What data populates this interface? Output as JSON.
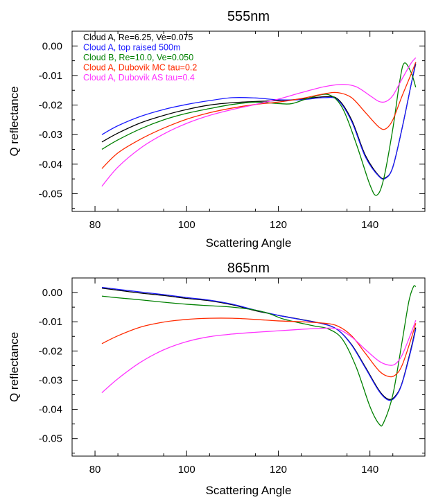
{
  "chart_data": [
    {
      "type": "line",
      "title": "555nm",
      "xlabel": "Scattering Angle",
      "ylabel": "Q reflectance",
      "xlim": [
        75,
        152
      ],
      "ylim": [
        -0.056,
        0.005
      ],
      "xticks": [
        80,
        100,
        120,
        140
      ],
      "xtick_labels": [
        "80",
        "100",
        "120",
        "140"
      ],
      "yticks": [
        0.0,
        -0.01,
        -0.02,
        -0.03,
        -0.04,
        -0.05
      ],
      "ytick_labels": [
        "0.00",
        "-0.01",
        "-0.02",
        "-0.03",
        "-0.04",
        "-0.05"
      ],
      "grid": false,
      "legend_position": "top-left",
      "series": [
        {
          "name": "Cloud A, Re=6.25, Ve=0.075",
          "color": "#000000",
          "points": [
            [
              81.5,
              -0.0325
            ],
            [
              85,
              -0.0295
            ],
            [
              90,
              -0.026
            ],
            [
              95,
              -0.0235
            ],
            [
              100,
              -0.0215
            ],
            [
              105,
              -0.02
            ],
            [
              110,
              -0.0192
            ],
            [
              115,
              -0.0188
            ],
            [
              120,
              -0.0185
            ],
            [
              125,
              -0.018
            ],
            [
              130,
              -0.0172
            ],
            [
              133,
              -0.018
            ],
            [
              136,
              -0.025
            ],
            [
              139,
              -0.037
            ],
            [
              142,
              -0.044
            ],
            [
              143.5,
              -0.0445
            ],
            [
              145,
              -0.041
            ],
            [
              147,
              -0.028
            ],
            [
              149,
              -0.013
            ],
            [
              150,
              -0.006
            ]
          ]
        },
        {
          "name": "Cloud A, top raised 500m",
          "color": "#1a1aff",
          "points": [
            [
              81.5,
              -0.03
            ],
            [
              85,
              -0.027
            ],
            [
              90,
              -0.0238
            ],
            [
              95,
              -0.0215
            ],
            [
              100,
              -0.0198
            ],
            [
              105,
              -0.0185
            ],
            [
              110,
              -0.0175
            ],
            [
              115,
              -0.0176
            ],
            [
              120,
              -0.0182
            ],
            [
              125,
              -0.0182
            ],
            [
              130,
              -0.0175
            ],
            [
              133,
              -0.0183
            ],
            [
              136,
              -0.0255
            ],
            [
              139,
              -0.0375
            ],
            [
              142,
              -0.0442
            ],
            [
              143.5,
              -0.0447
            ],
            [
              145,
              -0.041
            ],
            [
              147,
              -0.028
            ],
            [
              149,
              -0.013
            ],
            [
              150,
              -0.0055
            ]
          ]
        },
        {
          "name": "Cloud B, Re=10.0, Ve=0.050",
          "color": "#008000",
          "points": [
            [
              81.5,
              -0.035
            ],
            [
              85,
              -0.0318
            ],
            [
              90,
              -0.028
            ],
            [
              95,
              -0.025
            ],
            [
              100,
              -0.0228
            ],
            [
              105,
              -0.0212
            ],
            [
              110,
              -0.0198
            ],
            [
              115,
              -0.019
            ],
            [
              120,
              -0.0195
            ],
            [
              123,
              -0.0195
            ],
            [
              127,
              -0.0175
            ],
            [
              131,
              -0.0165
            ],
            [
              134,
              -0.021
            ],
            [
              137,
              -0.033
            ],
            [
              140,
              -0.047
            ],
            [
              141.5,
              -0.0505
            ],
            [
              143,
              -0.045
            ],
            [
              145,
              -0.028
            ],
            [
              146.5,
              -0.012
            ],
            [
              147.5,
              -0.0058
            ],
            [
              149,
              -0.009
            ],
            [
              150,
              -0.014
            ]
          ]
        },
        {
          "name": "Cloud A, Dubovik MC tau=0.2",
          "color": "#ff2a00",
          "points": [
            [
              81.5,
              -0.0415
            ],
            [
              85,
              -0.0362
            ],
            [
              90,
              -0.0315
            ],
            [
              95,
              -0.0278
            ],
            [
              100,
              -0.0248
            ],
            [
              105,
              -0.0226
            ],
            [
              110,
              -0.021
            ],
            [
              115,
              -0.0198
            ],
            [
              120,
              -0.019
            ],
            [
              125,
              -0.0178
            ],
            [
              130,
              -0.0162
            ],
            [
              133,
              -0.0158
            ],
            [
              136,
              -0.0175
            ],
            [
              139,
              -0.0225
            ],
            [
              142,
              -0.0275
            ],
            [
              143.5,
              -0.028
            ],
            [
              145,
              -0.025
            ],
            [
              147,
              -0.017
            ],
            [
              149,
              -0.0095
            ],
            [
              150,
              -0.0055
            ]
          ]
        },
        {
          "name": "Cloud A, Dubovik AS tau=0.4",
          "color": "#ff33ff",
          "points": [
            [
              81.5,
              -0.0475
            ],
            [
              85,
              -0.041
            ],
            [
              90,
              -0.0345
            ],
            [
              95,
              -0.0298
            ],
            [
              100,
              -0.0262
            ],
            [
              105,
              -0.0235
            ],
            [
              110,
              -0.0215
            ],
            [
              115,
              -0.0198
            ],
            [
              120,
              -0.018
            ],
            [
              125,
              -0.0158
            ],
            [
              130,
              -0.0138
            ],
            [
              134,
              -0.013
            ],
            [
              137,
              -0.0138
            ],
            [
              140,
              -0.0168
            ],
            [
              142,
              -0.0188
            ],
            [
              143.5,
              -0.0188
            ],
            [
              145,
              -0.0168
            ],
            [
              147,
              -0.0112
            ],
            [
              149,
              -0.0058
            ],
            [
              150,
              -0.004
            ]
          ]
        }
      ]
    },
    {
      "type": "line",
      "title": "865nm",
      "xlabel": "Scattering Angle",
      "ylabel": "Q reflectance",
      "xlim": [
        75,
        152
      ],
      "ylim": [
        -0.056,
        0.005
      ],
      "xticks": [
        80,
        100,
        120,
        140
      ],
      "xtick_labels": [
        "80",
        "100",
        "120",
        "140"
      ],
      "yticks": [
        0.0,
        -0.01,
        -0.02,
        -0.03,
        -0.04,
        -0.05
      ],
      "ytick_labels": [
        "0.00",
        "-0.01",
        "-0.02",
        "-0.03",
        "-0.04",
        "-0.05"
      ],
      "grid": false,
      "series": [
        {
          "name": "Cloud A, Re=6.25, Ve=0.075",
          "color": "#000000",
          "points": [
            [
              81.5,
              0.0015
            ],
            [
              85,
              0.0008
            ],
            [
              90,
              -0.0002
            ],
            [
              95,
              -0.001
            ],
            [
              100,
              -0.002
            ],
            [
              105,
              -0.0028
            ],
            [
              110,
              -0.0042
            ],
            [
              115,
              -0.0062
            ],
            [
              120,
              -0.0078
            ],
            [
              125,
              -0.0092
            ],
            [
              130,
              -0.0108
            ],
            [
              133,
              -0.0128
            ],
            [
              136,
              -0.0178
            ],
            [
              139,
              -0.0255
            ],
            [
              142,
              -0.0335
            ],
            [
              144,
              -0.0365
            ],
            [
              145.5,
              -0.0355
            ],
            [
              147,
              -0.031
            ],
            [
              149,
              -0.019
            ],
            [
              150,
              -0.012
            ]
          ]
        },
        {
          "name": "Cloud A, top raised 500m",
          "color": "#1a1aff",
          "points": [
            [
              81.5,
              0.0018
            ],
            [
              85,
              0.0011
            ],
            [
              90,
              0.0002
            ],
            [
              95,
              -0.0007
            ],
            [
              100,
              -0.0017
            ],
            [
              105,
              -0.0026
            ],
            [
              110,
              -0.004
            ],
            [
              115,
              -0.006
            ],
            [
              120,
              -0.0078
            ],
            [
              125,
              -0.0093
            ],
            [
              130,
              -0.0108
            ],
            [
              133,
              -0.0128
            ],
            [
              136,
              -0.018
            ],
            [
              139,
              -0.0258
            ],
            [
              142,
              -0.0338
            ],
            [
              144,
              -0.0368
            ],
            [
              145.5,
              -0.0358
            ],
            [
              147,
              -0.0312
            ],
            [
              149,
              -0.0195
            ],
            [
              150,
              -0.0125
            ]
          ]
        },
        {
          "name": "Cloud B, Re=10.0, Ve=0.050",
          "color": "#008000",
          "points": [
            [
              81.5,
              -0.0012
            ],
            [
              85,
              -0.0018
            ],
            [
              90,
              -0.0025
            ],
            [
              95,
              -0.0033
            ],
            [
              100,
              -0.004
            ],
            [
              105,
              -0.0045
            ],
            [
              110,
              -0.005
            ],
            [
              115,
              -0.006
            ],
            [
              118,
              -0.0072
            ],
            [
              121,
              -0.009
            ],
            [
              125,
              -0.0105
            ],
            [
              128,
              -0.0115
            ],
            [
              131,
              -0.0125
            ],
            [
              134,
              -0.016
            ],
            [
              137,
              -0.0255
            ],
            [
              140,
              -0.039
            ],
            [
              142,
              -0.045
            ],
            [
              143,
              -0.0445
            ],
            [
              145,
              -0.035
            ],
            [
              147,
              -0.017
            ],
            [
              148.5,
              -0.003
            ],
            [
              149.5,
              0.002
            ],
            [
              150,
              0.002
            ]
          ]
        },
        {
          "name": "Cloud A, Dubovik MC tau=0.2",
          "color": "#ff2a00",
          "points": [
            [
              81.5,
              -0.0175
            ],
            [
              85,
              -0.0148
            ],
            [
              90,
              -0.0118
            ],
            [
              95,
              -0.0101
            ],
            [
              100,
              -0.0092
            ],
            [
              105,
              -0.0088
            ],
            [
              110,
              -0.0088
            ],
            [
              115,
              -0.0092
            ],
            [
              120,
              -0.0097
            ],
            [
              125,
              -0.01
            ],
            [
              130,
              -0.0105
            ],
            [
              133,
              -0.0115
            ],
            [
              136,
              -0.0148
            ],
            [
              139,
              -0.0208
            ],
            [
              142,
              -0.0268
            ],
            [
              144,
              -0.0287
            ],
            [
              145.5,
              -0.0283
            ],
            [
              147,
              -0.025
            ],
            [
              149,
              -0.0158
            ],
            [
              150,
              -0.0105
            ]
          ]
        },
        {
          "name": "Cloud A, Dubovik AS tau=0.4",
          "color": "#ff33ff",
          "points": [
            [
              81.5,
              -0.0343
            ],
            [
              85,
              -0.0295
            ],
            [
              90,
              -0.0238
            ],
            [
              95,
              -0.0196
            ],
            [
              100,
              -0.0168
            ],
            [
              105,
              -0.0151
            ],
            [
              110,
              -0.0142
            ],
            [
              115,
              -0.0136
            ],
            [
              120,
              -0.0131
            ],
            [
              125,
              -0.0126
            ],
            [
              130,
              -0.0122
            ],
            [
              133,
              -0.0125
            ],
            [
              136,
              -0.0152
            ],
            [
              139,
              -0.0195
            ],
            [
              142,
              -0.0235
            ],
            [
              144,
              -0.0248
            ],
            [
              145.5,
              -0.0245
            ],
            [
              147,
              -0.0215
            ],
            [
              149,
              -0.0138
            ],
            [
              150,
              -0.0095
            ]
          ]
        }
      ]
    }
  ]
}
